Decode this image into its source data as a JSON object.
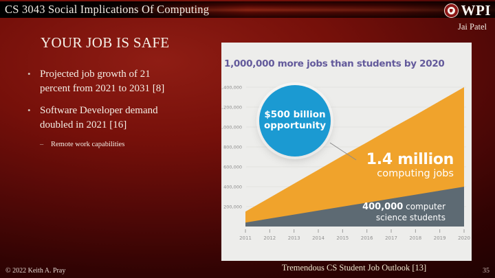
{
  "header": {
    "bar_title": "CS 3043 Social Implications Of Computing",
    "logo_text": "WPI",
    "author": "Jai Patel"
  },
  "content": {
    "title": "YOUR JOB IS SAFE",
    "bullet_marker": "•",
    "sub_bullet_marker": "–",
    "bullets": [
      {
        "text": "Projected job growth of 21\npercent from 2021 to 2031 [8]"
      },
      {
        "text": "Software Developer demand\ndoubled in 2021 [16]"
      }
    ],
    "sub_bullets": [
      {
        "text": "Remote work capabilities"
      }
    ]
  },
  "footer": {
    "copyright": "© 2022 Keith A. Pray",
    "caption": "Tremendous CS Student Job Outlook [13]",
    "page_number": "35"
  },
  "chart_data": {
    "type": "area",
    "title": "1,000,000 more jobs than students by 2020",
    "title_color": "#635a9b",
    "background": "#ededeb",
    "grid": true,
    "legend": "none",
    "x": [
      2011,
      2012,
      2013,
      2014,
      2015,
      2016,
      2017,
      2018,
      2019,
      2020
    ],
    "ylim": [
      0,
      1400000
    ],
    "yticks": [
      200000,
      400000,
      600000,
      800000,
      1000000,
      1200000,
      1400000
    ],
    "ytick_labels": [
      "200,000",
      "400,000",
      "600,000",
      "800,000",
      "1,000,000",
      "1,200,000",
      "1,400,000"
    ],
    "series": [
      {
        "name": "computing jobs",
        "color": "#f0a32c",
        "values": [
          150000,
          290000,
          430000,
          570000,
          710000,
          845000,
          985000,
          1120000,
          1260000,
          1400000
        ]
      },
      {
        "name": "computer science students",
        "color": "#5d6a73",
        "values": [
          40000,
          80000,
          120000,
          160000,
          200000,
          240000,
          280000,
          320000,
          360000,
          400000
        ]
      }
    ],
    "annotations": {
      "bubble": {
        "line1": "$500 billion",
        "line2": "opportunity",
        "color": "#1b9ad2"
      },
      "jobs": {
        "value": "1.4 million",
        "label": "computing jobs"
      },
      "students": {
        "value": "400,000",
        "rest_line1": " computer",
        "line2": "science students"
      }
    }
  }
}
